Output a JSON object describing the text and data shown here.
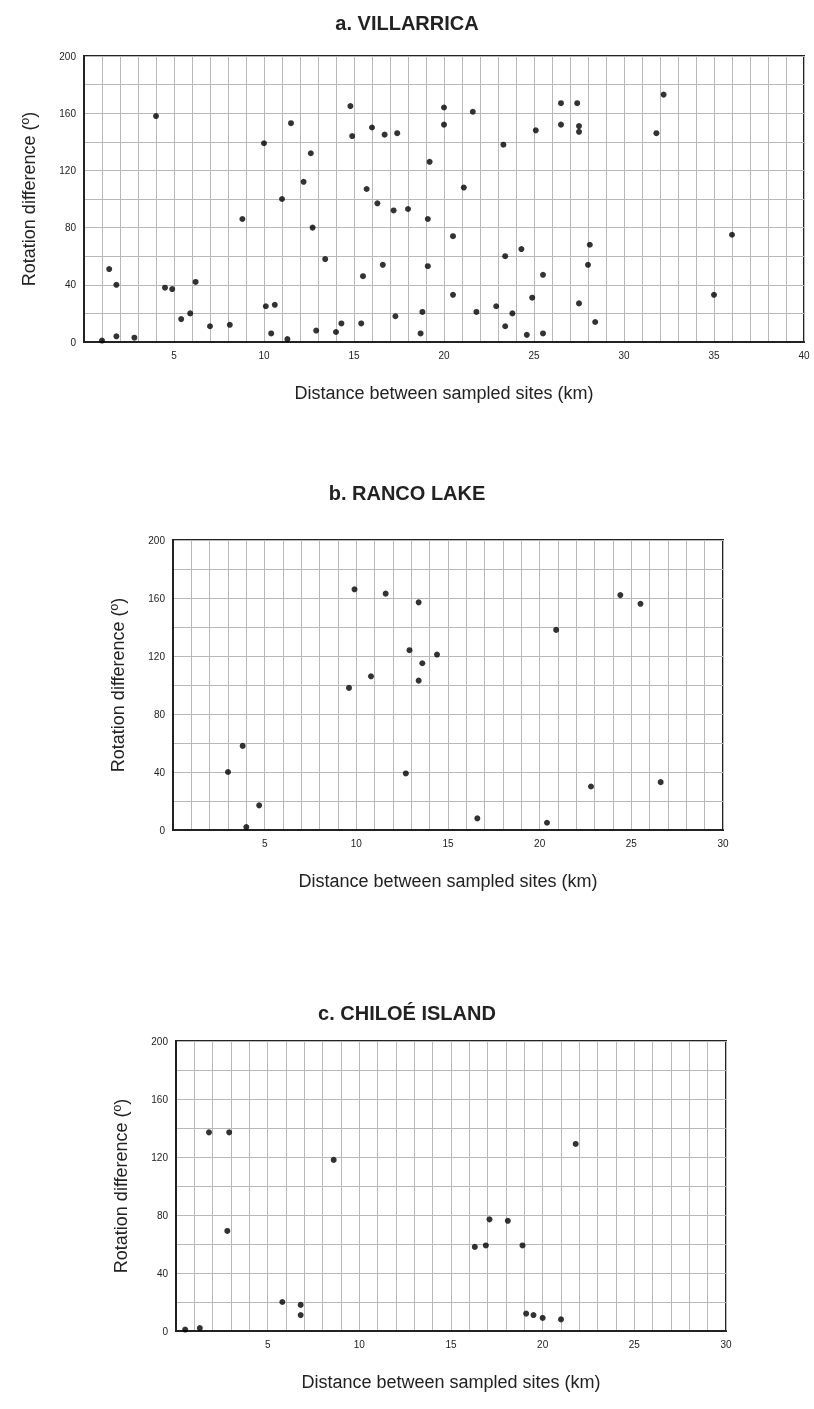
{
  "chart_data": [
    {
      "type": "scatter",
      "title": "a. VILLARRICA",
      "xlabel": "Distance between sampled sites (km)",
      "ylabel": "Rotation difference (º)",
      "color": "#000000",
      "marker": "circle",
      "grid": true,
      "xlim": [
        0,
        40
      ],
      "ylim": [
        0,
        200
      ],
      "xticks": [
        {
          "value": 0,
          "label": null
        },
        {
          "value": 1,
          "label": null
        },
        {
          "value": 2,
          "label": null
        },
        {
          "value": 3,
          "label": null
        },
        {
          "value": 4,
          "label": null
        },
        5,
        {
          "value": 6,
          "label": null
        },
        {
          "value": 7,
          "label": null
        },
        {
          "value": 8,
          "label": null
        },
        {
          "value": 9,
          "label": null
        },
        10,
        {
          "value": 11,
          "label": null
        },
        {
          "value": 12,
          "label": null
        },
        {
          "value": 13,
          "label": null
        },
        {
          "value": 14,
          "label": null
        },
        15,
        {
          "value": 16,
          "label": null
        },
        {
          "value": 17,
          "label": null
        },
        {
          "value": 18,
          "label": null
        },
        {
          "value": 19,
          "label": null
        },
        20,
        {
          "value": 21,
          "label": null
        },
        {
          "value": 22,
          "label": null
        },
        {
          "value": 23,
          "label": null
        },
        {
          "value": 24,
          "label": null
        },
        25,
        {
          "value": 26,
          "label": null
        },
        {
          "value": 27,
          "label": null
        },
        {
          "value": 28,
          "label": null
        },
        {
          "value": 29,
          "label": null
        },
        30,
        {
          "value": 31,
          "label": null
        },
        {
          "value": 32,
          "label": null
        },
        {
          "value": 33,
          "label": null
        },
        {
          "value": 34,
          "label": null
        },
        35,
        {
          "value": 36,
          "label": null
        },
        {
          "value": 37,
          "label": null
        },
        {
          "value": 38,
          "label": null
        },
        {
          "value": 39,
          "label": null
        },
        40
      ],
      "yticks": [
        0,
        {
          "value": 20,
          "label": null
        },
        40,
        {
          "value": 60,
          "label": null
        },
        80,
        {
          "value": 100,
          "label": null
        },
        120,
        {
          "value": 140,
          "label": null
        },
        160,
        {
          "value": 180,
          "label": null
        },
        200
      ],
      "x": [
        1.0,
        1.4,
        1.8,
        1.8,
        2.8,
        4.0,
        4.5,
        4.9,
        5.4,
        5.9,
        6.2,
        7.0,
        8.1,
        8.8,
        10.0,
        10.1,
        10.4,
        10.6,
        11.0,
        11.3,
        11.5,
        12.2,
        12.6,
        12.7,
        12.9,
        13.4,
        14.0,
        14.3,
        14.8,
        14.9,
        15.4,
        15.5,
        15.7,
        16.0,
        16.3,
        16.6,
        16.7,
        17.2,
        17.3,
        17.4,
        18.0,
        18.7,
        18.8,
        19.1,
        19.1,
        19.2,
        20.0,
        20.0,
        20.5,
        20.5,
        21.1,
        21.6,
        21.8,
        22.9,
        23.3,
        23.4,
        23.4,
        23.8,
        24.3,
        24.6,
        24.9,
        25.1,
        25.5,
        25.5,
        26.5,
        26.5,
        27.4,
        27.5,
        27.5,
        27.5,
        28.0,
        28.1,
        28.4,
        31.8,
        32.2,
        35.0,
        36.0
      ],
      "values": [
        1,
        51,
        40,
        4,
        3,
        158,
        38,
        37,
        16,
        20,
        42,
        11,
        12,
        86,
        139,
        25,
        6,
        26,
        100,
        2,
        153,
        112,
        132,
        80,
        8,
        58,
        7,
        13,
        165,
        144,
        13,
        46,
        107,
        150,
        97,
        54,
        145,
        92,
        18,
        146,
        93,
        6,
        21,
        53,
        86,
        126,
        152,
        164,
        33,
        74,
        108,
        161,
        21,
        25,
        138,
        60,
        11,
        20,
        65,
        5,
        31,
        148,
        47,
        6,
        167,
        152,
        167,
        151,
        147,
        27,
        54,
        68,
        14,
        146,
        173,
        33,
        75
      ]
    },
    {
      "type": "scatter",
      "title": "b. RANCO LAKE",
      "xlabel": "Distance between sampled sites (km)",
      "ylabel": "Rotation difference (º)",
      "color": "#000000",
      "marker": "circle",
      "grid": true,
      "xlim": [
        0,
        30
      ],
      "ylim": [
        0,
        200
      ],
      "xticks": [
        {
          "value": 0,
          "label": null
        },
        {
          "value": 1,
          "label": null
        },
        {
          "value": 2,
          "label": null
        },
        {
          "value": 3,
          "label": null
        },
        {
          "value": 4,
          "label": null
        },
        5,
        {
          "value": 6,
          "label": null
        },
        {
          "value": 7,
          "label": null
        },
        {
          "value": 8,
          "label": null
        },
        {
          "value": 9,
          "label": null
        },
        10,
        {
          "value": 11,
          "label": null
        },
        {
          "value": 12,
          "label": null
        },
        {
          "value": 13,
          "label": null
        },
        {
          "value": 14,
          "label": null
        },
        15,
        {
          "value": 16,
          "label": null
        },
        {
          "value": 17,
          "label": null
        },
        {
          "value": 18,
          "label": null
        },
        {
          "value": 19,
          "label": null
        },
        20,
        {
          "value": 21,
          "label": null
        },
        {
          "value": 22,
          "label": null
        },
        {
          "value": 23,
          "label": null
        },
        {
          "value": 24,
          "label": null
        },
        25,
        {
          "value": 26,
          "label": null
        },
        {
          "value": 27,
          "label": null
        },
        {
          "value": 28,
          "label": null
        },
        {
          "value": 29,
          "label": null
        },
        30
      ],
      "yticks": [
        0,
        {
          "value": 20,
          "label": null
        },
        40,
        {
          "value": 60,
          "label": null
        },
        80,
        {
          "value": 100,
          "label": null
        },
        120,
        {
          "value": 140,
          "label": null
        },
        160,
        {
          "value": 180,
          "label": null
        },
        200
      ],
      "x": [
        3.0,
        3.8,
        4.0,
        4.7,
        9.6,
        9.9,
        10.8,
        11.6,
        12.7,
        12.9,
        13.4,
        13.4,
        13.6,
        14.4,
        16.6,
        20.4,
        20.9,
        22.8,
        24.4,
        25.5,
        26.6
      ],
      "values": [
        40,
        58,
        2,
        17,
        98,
        166,
        106,
        163,
        39,
        124,
        157,
        103,
        115,
        121,
        8,
        5,
        138,
        30,
        162,
        156,
        33
      ]
    },
    {
      "type": "scatter",
      "title": "c. CHILOÉ ISLAND",
      "xlabel": "Distance between sampled sites (km)",
      "ylabel": "Rotation difference (º)",
      "color": "#000000",
      "marker": "circle",
      "grid": true,
      "xlim": [
        0,
        30
      ],
      "ylim": [
        0,
        200
      ],
      "xticks": [
        {
          "value": 0,
          "label": null
        },
        {
          "value": 1,
          "label": null
        },
        {
          "value": 2,
          "label": null
        },
        {
          "value": 3,
          "label": null
        },
        {
          "value": 4,
          "label": null
        },
        5,
        {
          "value": 6,
          "label": null
        },
        {
          "value": 7,
          "label": null
        },
        {
          "value": 8,
          "label": null
        },
        {
          "value": 9,
          "label": null
        },
        10,
        {
          "value": 11,
          "label": null
        },
        {
          "value": 12,
          "label": null
        },
        {
          "value": 13,
          "label": null
        },
        {
          "value": 14,
          "label": null
        },
        15,
        {
          "value": 16,
          "label": null
        },
        {
          "value": 17,
          "label": null
        },
        {
          "value": 18,
          "label": null
        },
        {
          "value": 19,
          "label": null
        },
        20,
        {
          "value": 21,
          "label": null
        },
        {
          "value": 22,
          "label": null
        },
        {
          "value": 23,
          "label": null
        },
        {
          "value": 24,
          "label": null
        },
        25,
        {
          "value": 26,
          "label": null
        },
        {
          "value": 27,
          "label": null
        },
        {
          "value": 28,
          "label": null
        },
        {
          "value": 29,
          "label": null
        },
        30
      ],
      "yticks": [
        0,
        {
          "value": 20,
          "label": null
        },
        40,
        {
          "value": 60,
          "label": null
        },
        80,
        {
          "value": 100,
          "label": null
        },
        120,
        {
          "value": 140,
          "label": null
        },
        160,
        {
          "value": 180,
          "label": null
        },
        200
      ],
      "x": [
        0.5,
        1.3,
        1.8,
        2.9,
        2.8,
        5.8,
        6.8,
        6.8,
        8.6,
        16.3,
        16.9,
        17.1,
        18.1,
        18.9,
        19.1,
        19.5,
        20.0,
        21.0,
        21.8
      ],
      "values": [
        1,
        2,
        137,
        137,
        69,
        20,
        18,
        11,
        118,
        58,
        59,
        77,
        76,
        59,
        12,
        11,
        9,
        8,
        129
      ]
    }
  ]
}
